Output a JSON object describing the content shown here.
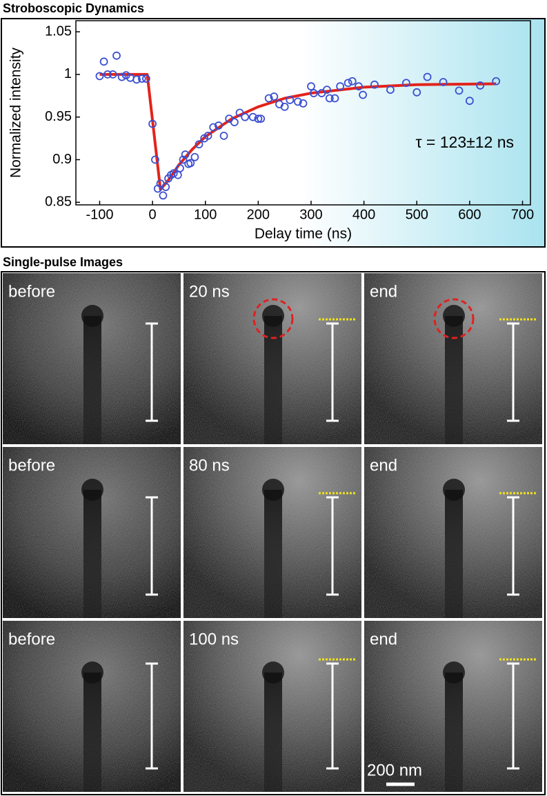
{
  "chart_data": {
    "type": "scatter",
    "title": "Stroboscopic Dynamics",
    "x_label": "Delay time (ns)",
    "y_label": "Normalized intensity",
    "annotation": "τ = 123±12 ns",
    "xlim": [
      -145,
      715
    ],
    "ylim": [
      0.847,
      1.063
    ],
    "xticks": [
      -100,
      0,
      100,
      200,
      300,
      400,
      500,
      600,
      700
    ],
    "yticks": [
      0.85,
      0.9,
      0.95,
      1,
      1.05
    ],
    "grid": false,
    "series": [
      {
        "mode": "markers",
        "color": "#3b4fd1",
        "x": [
          -100,
          -92,
          -85,
          -75,
          -68,
          -58,
          -50,
          -42,
          -30,
          -20,
          -12,
          0,
          5,
          10,
          15,
          20,
          25,
          30,
          35,
          40,
          48,
          52,
          58,
          62,
          68,
          72,
          80,
          88,
          98,
          105,
          115,
          125,
          135,
          145,
          155,
          165,
          175,
          190,
          200,
          205,
          220,
          230,
          240,
          250,
          260,
          275,
          285,
          300,
          305,
          320,
          330,
          335,
          345,
          355,
          370,
          378,
          390,
          398,
          420,
          450,
          480,
          500,
          520,
          550,
          580,
          600,
          620,
          650
        ],
        "values": [
          0.998,
          1.015,
          1.0,
          1.0,
          1.022,
          0.997,
          0.999,
          0.996,
          0.994,
          0.995,
          0.995,
          0.942,
          0.9,
          0.866,
          0.872,
          0.858,
          0.868,
          0.878,
          0.882,
          0.884,
          0.882,
          0.89,
          0.9,
          0.906,
          0.895,
          0.896,
          0.903,
          0.918,
          0.925,
          0.928,
          0.938,
          0.94,
          0.928,
          0.948,
          0.944,
          0.955,
          0.95,
          0.95,
          0.948,
          0.948,
          0.972,
          0.974,
          0.965,
          0.962,
          0.97,
          0.968,
          0.966,
          0.986,
          0.978,
          0.978,
          0.982,
          0.972,
          0.972,
          0.986,
          0.99,
          0.992,
          0.986,
          0.976,
          0.988,
          0.982,
          0.99,
          0.979,
          0.997,
          0.991,
          0.981,
          0.969,
          0.987,
          0.992
        ]
      },
      {
        "mode": "line",
        "color": "#e3231b",
        "x": [
          -100,
          -10,
          15,
          30,
          50,
          75,
          100,
          150,
          200,
          250,
          300,
          400,
          500,
          650
        ],
        "values": [
          1,
          1,
          0.865,
          0.876,
          0.894,
          0.912,
          0.927,
          0.948,
          0.962,
          0.972,
          0.978,
          0.985,
          0.988,
          0.989
        ]
      }
    ]
  },
  "images": {
    "title": "Single-pulse Images",
    "panels": [
      "before",
      "20 ns",
      "end",
      "before",
      "80 ns",
      "end",
      "before",
      "100 ns",
      "end"
    ],
    "scale_bar": "200 nm"
  }
}
